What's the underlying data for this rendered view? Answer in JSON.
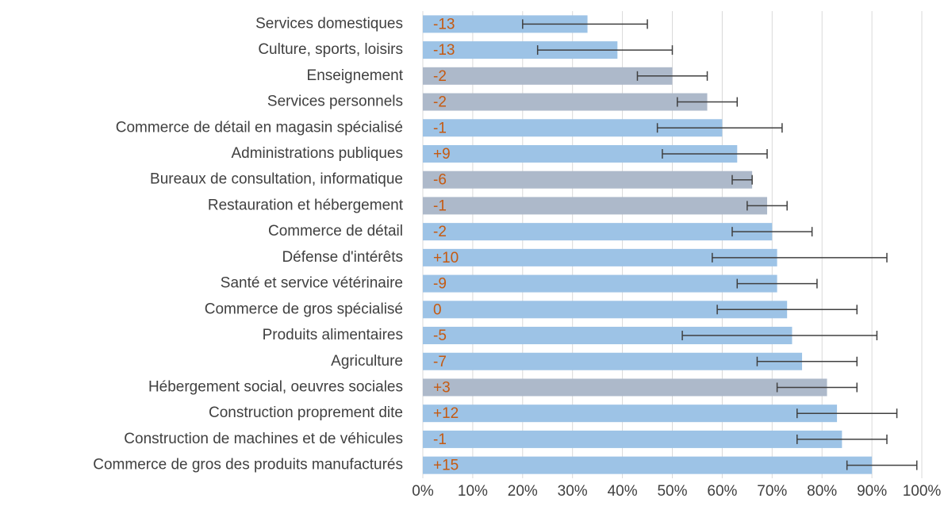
{
  "chart_data": {
    "type": "bar",
    "orientation": "horizontal",
    "categories": [
      "Services domestiques",
      "Culture, sports, loisirs",
      "Enseignement",
      "Services personnels",
      "Commerce de détail en magasin spécialisé",
      "Administrations publiques",
      "Bureaux de consultation, informatique",
      "Restauration et hébergement",
      "Commerce de détail",
      "Défense d'intérêts",
      "Santé et service vétérinaire",
      "Commerce de gros spécialisé",
      "Produits alimentaires",
      "Agriculture",
      "Hébergement social, oeuvres sociales",
      "Construction proprement dite",
      "Construction de machines et de véhicules",
      "Commerce de gros des produits manufacturés"
    ],
    "series": [
      {
        "values": [
          33,
          39,
          50,
          57,
          60,
          63,
          66,
          69,
          70,
          71,
          71,
          73,
          74,
          76,
          81,
          83,
          84,
          90
        ],
        "ci_low": [
          20,
          23,
          43,
          51,
          47,
          48,
          62,
          65,
          62,
          58,
          63,
          59,
          52,
          67,
          71,
          75,
          75,
          85
        ],
        "ci_high": [
          45,
          50,
          57,
          63,
          72,
          69,
          66,
          73,
          78,
          93,
          79,
          87,
          91,
          87,
          87,
          95,
          93,
          99
        ],
        "colors": [
          "#9dc3e6",
          "#9dc3e6",
          "#adb9ca",
          "#adb9ca",
          "#9dc3e6",
          "#9dc3e6",
          "#adb9ca",
          "#adb9ca",
          "#9dc3e6",
          "#9dc3e6",
          "#9dc3e6",
          "#9dc3e6",
          "#9dc3e6",
          "#9dc3e6",
          "#adb9ca",
          "#9dc3e6",
          "#9dc3e6",
          "#9dc3e6"
        ]
      }
    ],
    "labels": {
      "values": [
        -13,
        -13,
        -2,
        -2,
        -1,
        9,
        -6,
        -1,
        -2,
        10,
        -9,
        0,
        -5,
        -7,
        3,
        12,
        -1,
        15
      ],
      "value_labels": [
        "-13",
        "-13",
        "-2",
        "-2",
        "-1",
        "+9",
        "-6",
        "-1",
        "-2",
        "+10",
        "-9",
        "0",
        "-5",
        "-7",
        "+3",
        "+12",
        "-1",
        "+15"
      ],
      "color": "#c55a11"
    },
    "error_color": "#404040",
    "xlim": [
      0,
      100
    ],
    "xticks": [
      {
        "value": 0,
        "label": "0%"
      },
      {
        "value": 10,
        "label": "10%"
      },
      {
        "value": 20,
        "label": "20%"
      },
      {
        "value": 30,
        "label": "30%"
      },
      {
        "value": 40,
        "label": "40%"
      },
      {
        "value": 50,
        "label": "50%"
      },
      {
        "value": 60,
        "label": "60%"
      },
      {
        "value": 70,
        "label": "70%"
      },
      {
        "value": 80,
        "label": "80%"
      },
      {
        "value": 90,
        "label": "90%"
      },
      {
        "value": 100,
        "label": "100%"
      }
    ],
    "grid": true
  }
}
